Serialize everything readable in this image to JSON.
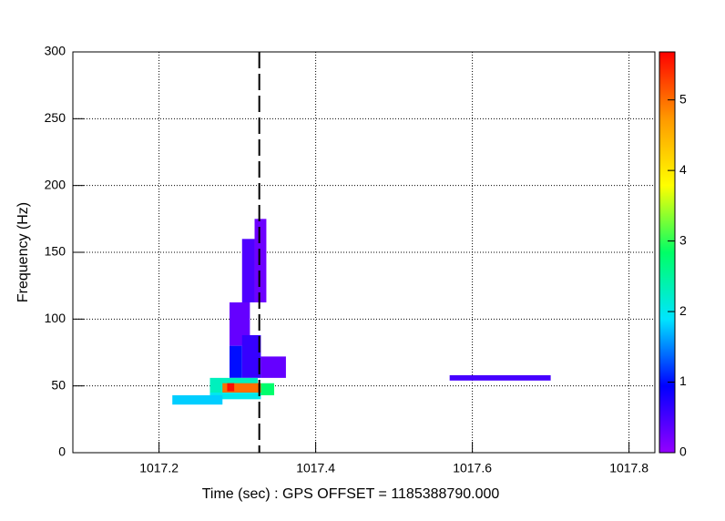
{
  "chart_data": {
    "type": "tiles",
    "x_label": "Time (sec) : GPS OFFSET = 1185388790.000",
    "y_label": "Frequency (Hz)",
    "xlim": [
      1017.09,
      1017.833
    ],
    "xticks": [
      1017.2,
      1017.4,
      1017.6,
      1017.8
    ],
    "ylim": [
      0,
      300
    ],
    "yticks": [
      0,
      50,
      100,
      150,
      200,
      250,
      300
    ],
    "zlim": [
      0,
      5.68
    ],
    "zticks": [
      0,
      1,
      2,
      3,
      4,
      5
    ],
    "grid": true,
    "colormap": [
      "#9400ff",
      "#0000ff",
      "#00e5ff",
      "#00ff66",
      "#ffff00",
      "#ff9900",
      "#ff0000"
    ],
    "marker_x": 1017.328,
    "tiles": [
      {
        "x": [
          1017.322,
          1017.337
        ],
        "y": [
          112.5,
          175
        ],
        "z": 0.25
      },
      {
        "x": [
          1017.306,
          1017.322
        ],
        "y": [
          112.5,
          160
        ],
        "z": 0.45
      },
      {
        "x": [
          1017.29,
          1017.316
        ],
        "y": [
          80,
          112.5
        ],
        "z": 0.3
      },
      {
        "x": [
          1017.29,
          1017.306
        ],
        "y": [
          56,
          80
        ],
        "z": 1.0
      },
      {
        "x": [
          1017.306,
          1017.33
        ],
        "y": [
          56,
          88
        ],
        "z": 0.6
      },
      {
        "x": [
          1017.33,
          1017.362
        ],
        "y": [
          56,
          72
        ],
        "z": 0.3
      },
      {
        "x": [
          1017.265,
          1017.326
        ],
        "y": [
          43,
          56
        ],
        "z": 2.3
      },
      {
        "x": [
          1017.326,
          1017.347
        ],
        "y": [
          43,
          52
        ],
        "z": 2.8
      },
      {
        "x": [
          1017.281,
          1017.33
        ],
        "y": [
          45,
          52
        ],
        "z": 5.0
      },
      {
        "x": [
          1017.287,
          1017.296
        ],
        "y": [
          46,
          52
        ],
        "z": 5.6
      },
      {
        "x": [
          1017.265,
          1017.33
        ],
        "y": [
          40,
          45
        ],
        "z": 2.0
      },
      {
        "x": [
          1017.217,
          1017.281
        ],
        "y": [
          36,
          43
        ],
        "z": 1.8
      },
      {
        "x": [
          1017.571,
          1017.7
        ],
        "y": [
          54,
          58
        ],
        "z": 0.5
      }
    ]
  }
}
